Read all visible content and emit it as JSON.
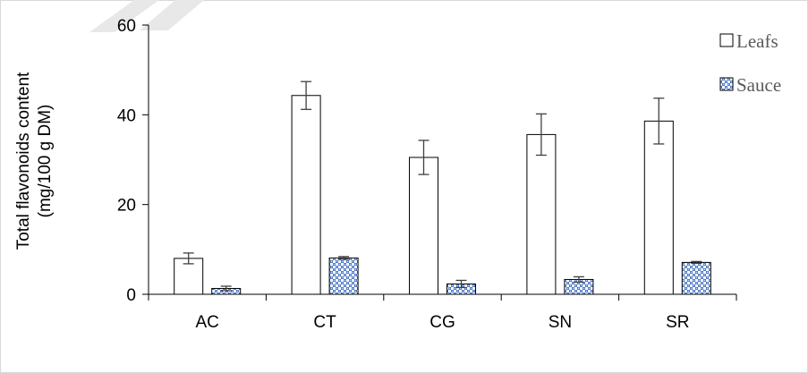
{
  "chart_data": {
    "type": "bar",
    "title": "",
    "xlabel": "",
    "ylabel": "Total flavonoids content (mg/100 g DM)",
    "ylabel_lines": [
      "Total flavonoids content",
      "(mg/100 g DM)"
    ],
    "categories": [
      "AC",
      "CT",
      "CG",
      "SN",
      "SR"
    ],
    "ylim": [
      0,
      60
    ],
    "yticks": [
      0,
      20,
      40,
      60
    ],
    "grid": false,
    "legend_position": "top-right",
    "series": [
      {
        "name": "Leafs",
        "pattern": "none",
        "fill": "#ffffff",
        "stroke": "#000000",
        "values": [
          8.0,
          44.3,
          30.5,
          35.6,
          38.6
        ],
        "errors": [
          1.2,
          3.1,
          3.8,
          4.6,
          5.1
        ]
      },
      {
        "name": "Sauce",
        "pattern": "blue-checker",
        "fill": "#4472c4",
        "stroke": "#000000",
        "values": [
          1.3,
          8.1,
          2.3,
          3.3,
          7.1
        ],
        "errors": [
          0.5,
          0.3,
          0.8,
          0.6,
          0.2
        ]
      }
    ]
  }
}
